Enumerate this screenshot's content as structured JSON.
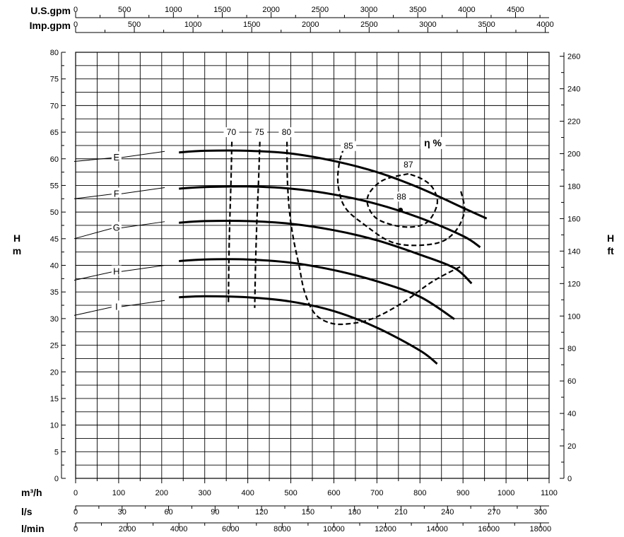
{
  "chart_data": {
    "type": "line",
    "axes": {
      "top_scales": [
        {
          "label": "U.S.gpm",
          "ticks": [
            0,
            500,
            1000,
            1500,
            2000,
            2500,
            3000,
            3500,
            4000,
            4500
          ],
          "factor": 4.4029
        },
        {
          "label": "Imp.gpm",
          "ticks": [
            0,
            500,
            1000,
            1500,
            2000,
            2500,
            3000,
            3500,
            4000
          ],
          "factor": 3.6662
        }
      ],
      "bottom_scales": [
        {
          "label": "m³/h",
          "ticks": [
            0,
            100,
            200,
            300,
            400,
            500,
            600,
            700,
            800,
            900,
            1000,
            1100
          ],
          "factor": 1
        },
        {
          "label": "l/s",
          "ticks": [
            0,
            30,
            60,
            90,
            120,
            150,
            180,
            210,
            240,
            270,
            300
          ],
          "factor": 0.27778
        },
        {
          "label": "l/min",
          "ticks": [
            0,
            2000,
            4000,
            6000,
            8000,
            10000,
            12000,
            14000,
            16000,
            18000
          ],
          "factor": 16.667
        }
      ],
      "left": {
        "label_top": "H",
        "label_bottom": "m",
        "min": 0,
        "max": 80,
        "ticks": [
          0,
          5,
          10,
          15,
          20,
          25,
          30,
          35,
          40,
          45,
          50,
          55,
          60,
          65,
          70,
          75,
          80
        ]
      },
      "right": {
        "label_top": "H",
        "label_bottom": "ft",
        "ticks": [
          0,
          20,
          40,
          60,
          80,
          100,
          120,
          140,
          160,
          180,
          200,
          220,
          240,
          260
        ]
      },
      "x_min": 0,
      "x_max": 1100,
      "grid": true
    },
    "head_curves": [
      {
        "name": "E",
        "points": [
          [
            240,
            61.2
          ],
          [
            300,
            61.5
          ],
          [
            400,
            61.5
          ],
          [
            500,
            61.0
          ],
          [
            600,
            59.6
          ],
          [
            700,
            57.5
          ],
          [
            800,
            54.5
          ],
          [
            900,
            50.8
          ],
          [
            955,
            48.8
          ]
        ]
      },
      {
        "name": "F",
        "points": [
          [
            240,
            54.4
          ],
          [
            300,
            54.7
          ],
          [
            400,
            54.8
          ],
          [
            500,
            54.4
          ],
          [
            600,
            53.3
          ],
          [
            700,
            51.5
          ],
          [
            800,
            48.9
          ],
          [
            900,
            45.5
          ],
          [
            940,
            43.4
          ]
        ]
      },
      {
        "name": "G",
        "points": [
          [
            240,
            48.0
          ],
          [
            300,
            48.3
          ],
          [
            400,
            48.3
          ],
          [
            500,
            47.8
          ],
          [
            600,
            46.6
          ],
          [
            700,
            44.7
          ],
          [
            800,
            42.0
          ],
          [
            880,
            39.5
          ],
          [
            920,
            36.6
          ]
        ]
      },
      {
        "name": "H",
        "points": [
          [
            240,
            40.8
          ],
          [
            300,
            41.1
          ],
          [
            400,
            41.1
          ],
          [
            500,
            40.5
          ],
          [
            600,
            39.1
          ],
          [
            700,
            37.0
          ],
          [
            800,
            34.1
          ],
          [
            880,
            29.9
          ]
        ]
      },
      {
        "name": "I",
        "points": [
          [
            240,
            34.0
          ],
          [
            300,
            34.2
          ],
          [
            400,
            34.0
          ],
          [
            500,
            33.2
          ],
          [
            600,
            31.4
          ],
          [
            700,
            28.3
          ],
          [
            800,
            24.0
          ],
          [
            840,
            21.5
          ]
        ]
      }
    ],
    "curve_labels": [
      {
        "name": "E",
        "x": 95,
        "y": 60.2
      },
      {
        "name": "F",
        "x": 95,
        "y": 53.4
      },
      {
        "name": "G",
        "x": 95,
        "y": 47.0
      },
      {
        "name": "H",
        "x": 95,
        "y": 38.8
      },
      {
        "name": "I",
        "x": 95,
        "y": 32.2
      }
    ],
    "label_leaders": [
      {
        "name": "E",
        "from": [
          0,
          59.5
        ],
        "to": [
          87,
          60.2
        ]
      },
      {
        "name": "F",
        "from": [
          0,
          52.5
        ],
        "to": [
          87,
          53.4
        ]
      },
      {
        "name": "G",
        "from": [
          0,
          45.0
        ],
        "to": [
          87,
          47.0
        ]
      },
      {
        "name": "H",
        "from": [
          0,
          37.2
        ],
        "to": [
          87,
          38.8
        ]
      },
      {
        "name": "I",
        "from": [
          0,
          30.6
        ],
        "to": [
          87,
          32.2
        ]
      }
    ],
    "efficiency_title": "η %",
    "efficiency_title_pos": {
      "x": 830,
      "y": 62.5
    },
    "efficiency_curves": [
      {
        "name": "70",
        "label_pos": [
          362,
          64.6
        ],
        "points": [
          [
            363,
            63.2
          ],
          [
            361,
            56
          ],
          [
            358,
            48
          ],
          [
            356,
            40
          ],
          [
            355,
            32.5
          ]
        ]
      },
      {
        "name": "75",
        "label_pos": [
          427,
          64.6
        ],
        "points": [
          [
            428,
            63.2
          ],
          [
            425,
            56
          ],
          [
            421,
            48
          ],
          [
            418,
            40
          ],
          [
            416,
            32.0
          ]
        ]
      },
      {
        "name": "80",
        "label_pos": [
          490,
          64.6
        ],
        "points": [
          [
            491,
            63.2
          ],
          [
            492,
            56
          ],
          [
            497,
            50
          ],
          [
            506,
            45
          ],
          [
            519,
            40
          ],
          [
            532,
            35
          ],
          [
            555,
            31
          ],
          [
            590,
            29.2
          ],
          [
            632,
            29.0
          ],
          [
            690,
            30
          ],
          [
            760,
            33
          ],
          [
            830,
            37
          ],
          [
            900,
            40
          ]
        ]
      },
      {
        "name": "85",
        "label_pos": [
          634,
          62.0
        ],
        "points": [
          [
            623,
            62.0
          ],
          [
            612,
            59
          ],
          [
            610,
            55
          ],
          [
            625,
            51
          ],
          [
            665,
            48
          ],
          [
            740,
            44.2
          ],
          [
            830,
            44.0
          ],
          [
            878,
            46
          ],
          [
            903,
            50
          ],
          [
            895,
            54
          ]
        ]
      },
      {
        "name": "87",
        "label_pos": [
          773,
          58.5
        ],
        "points": [
          [
            773,
            57.2
          ],
          [
            715,
            56.0
          ],
          [
            682,
            53.5
          ],
          [
            680,
            51
          ],
          [
            705,
            48.5
          ],
          [
            765,
            47.2
          ],
          [
            815,
            48
          ],
          [
            840,
            51.5
          ],
          [
            830,
            54.5
          ],
          [
            805,
            56.2
          ],
          [
            773,
            57.2
          ]
        ]
      },
      {
        "name": "88",
        "label_pos": [
          757,
          52.5
        ],
        "points": [
          [
            755,
            50.4
          ]
        ]
      }
    ]
  }
}
